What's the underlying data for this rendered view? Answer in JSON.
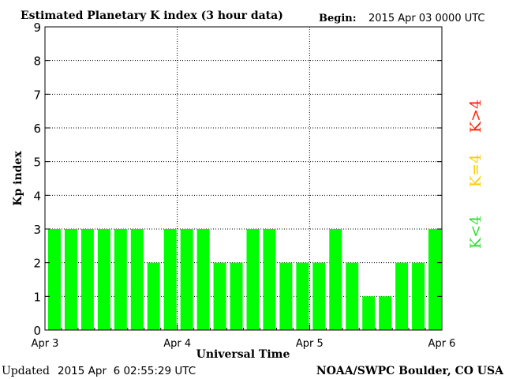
{
  "chart_data": {
    "type": "bar",
    "title": "Estimated Planetary K index (3 hour data)",
    "begin_label": "Begin:",
    "begin_value": "2015 Apr 03 0000 UTC",
    "xlabel": "Universal Time",
    "ylabel": "Kp index",
    "ylim": [
      0,
      9
    ],
    "yticks": [
      "0",
      "1",
      "2",
      "3",
      "4",
      "5",
      "6",
      "7",
      "8",
      "9"
    ],
    "xticks": [
      "Apr 3",
      "Apr 4",
      "Apr 5",
      "Apr 6"
    ],
    "values": [
      3,
      3,
      3,
      3,
      3,
      3,
      2,
      3,
      3,
      3,
      2,
      2,
      3,
      3,
      2,
      2,
      2,
      3,
      2,
      1,
      1,
      2,
      2,
      3
    ],
    "bar_color": "#00ff00",
    "legend": [
      {
        "label": "K<4",
        "color": "#33dd33"
      },
      {
        "label": "K=4",
        "color": "#ffcc00"
      },
      {
        "label": "K>4",
        "color": "#ff2200"
      }
    ],
    "grid": true
  },
  "footer": {
    "updated_label": "Updated",
    "updated_value": "2015 Apr  6 02:55:29 UTC",
    "credit": "NOAA/SWPC Boulder, CO USA"
  }
}
